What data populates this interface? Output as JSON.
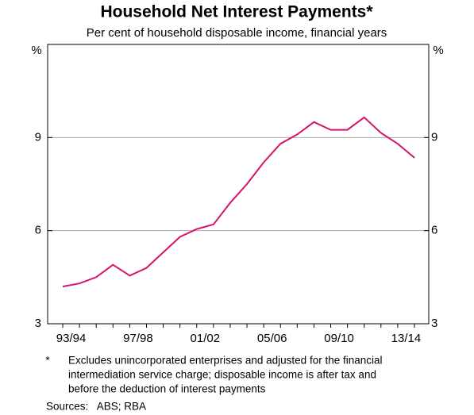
{
  "chart_data": {
    "type": "line",
    "title": "Household Net Interest Payments*",
    "subtitle": "Per cent of household disposable income, financial years",
    "y_unit": "%",
    "categories": [
      null,
      "93/94",
      null,
      null,
      null,
      "97/98",
      null,
      null,
      null,
      "01/02",
      null,
      null,
      null,
      "05/06",
      null,
      null,
      null,
      "09/10",
      null,
      null,
      null,
      "13/14"
    ],
    "series": [
      {
        "name": "Household net interest payments",
        "color": "#d6136b",
        "values": [
          4.2,
          4.3,
          4.5,
          4.9,
          4.55,
          4.8,
          5.3,
          5.8,
          6.05,
          6.2,
          6.9,
          7.5,
          8.2,
          8.8,
          9.1,
          9.5,
          9.25,
          9.25,
          9.65,
          9.15,
          8.8,
          8.35
        ]
      }
    ],
    "ylim": [
      3,
      12
    ],
    "yticks": [
      3,
      6,
      9
    ],
    "grid": true,
    "footnote": {
      "marker": "*",
      "lines": [
        "Excludes unincorporated enterprises and adjusted for the financial",
        "intermediation service charge; disposable income is after tax and",
        "before the deduction of interest payments"
      ]
    },
    "sources": "Sources:   ABS; RBA"
  }
}
